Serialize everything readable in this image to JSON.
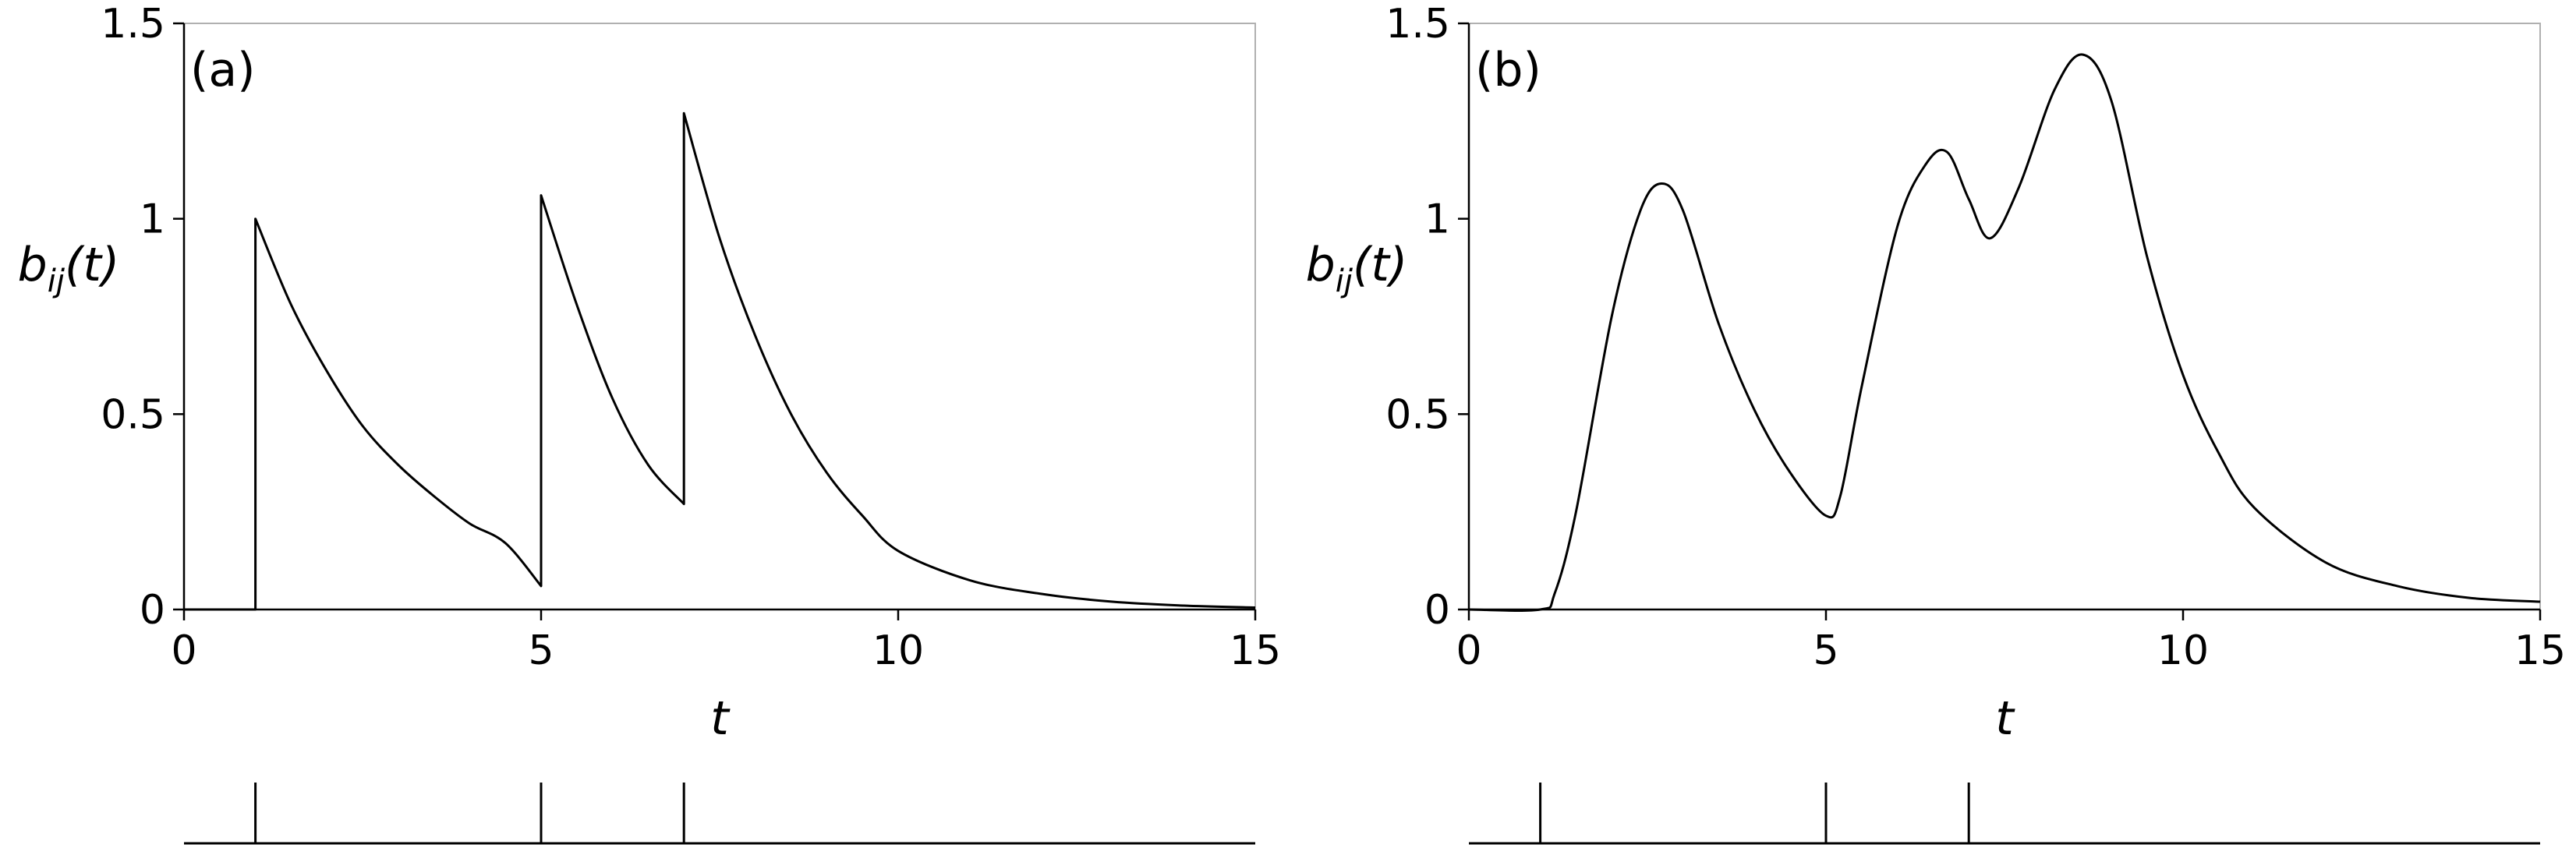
{
  "chart_data": [
    {
      "type": "line",
      "panel_label": "(a)",
      "xlabel": "t",
      "ylabel": {
        "base": "b",
        "sub": "ij",
        "arg": "(t)"
      },
      "xlim": [
        0,
        15
      ],
      "ylim": [
        0,
        1.5
      ],
      "x_ticks": [
        "0",
        "5",
        "10",
        "15"
      ],
      "x_tick_values": [
        0,
        5,
        10,
        15
      ],
      "y_ticks": [
        "0",
        "0.5",
        "1",
        "1.5"
      ],
      "y_tick_values": [
        0,
        0.5,
        1,
        1.5
      ],
      "grid": false,
      "spike_times": [
        1,
        5,
        7
      ],
      "series": [
        {
          "x": [
            0,
            1,
            1,
            1.5,
            2,
            2.5,
            3,
            3.5,
            4,
            4.5,
            5,
            5,
            5.5,
            6,
            6.5,
            7,
            7,
            7.5,
            8,
            8.5,
            9,
            9.5,
            10,
            11,
            12,
            13,
            14,
            15
          ],
          "values": [
            0,
            0,
            1.0,
            0.78,
            0.61,
            0.47,
            0.37,
            0.29,
            0.22,
            0.17,
            0.06,
            1.06,
            0.78,
            0.54,
            0.37,
            0.27,
            1.27,
            0.95,
            0.7,
            0.5,
            0.35,
            0.24,
            0.15,
            0.075,
            0.04,
            0.02,
            0.01,
            0.005
          ]
        }
      ]
    },
    {
      "type": "line",
      "panel_label": "(b)",
      "xlabel": "t",
      "ylabel": {
        "base": "b",
        "sub": "ij",
        "arg": "(t)"
      },
      "xlim": [
        0,
        15
      ],
      "ylim": [
        0,
        1.5
      ],
      "x_ticks": [
        "0",
        "5",
        "10",
        "15"
      ],
      "x_tick_values": [
        0,
        5,
        10,
        15
      ],
      "y_ticks": [
        "0",
        "0.5",
        "1",
        "1.5"
      ],
      "y_tick_values": [
        0,
        0.5,
        1,
        1.5
      ],
      "grid": false,
      "spike_times": [
        1,
        5,
        7
      ],
      "series": [
        {
          "x": [
            0,
            1,
            1.2,
            1.5,
            2,
            2.4,
            2.7,
            3,
            3.5,
            4,
            4.5,
            5,
            5.2,
            5.5,
            6,
            6.4,
            6.7,
            7,
            7.3,
            7.7,
            8.2,
            8.6,
            9,
            9.5,
            10,
            10.5,
            11,
            12,
            13,
            14,
            15
          ],
          "values": [
            0,
            0,
            0.04,
            0.25,
            0.75,
            1.02,
            1.09,
            1.02,
            0.73,
            0.51,
            0.35,
            0.24,
            0.29,
            0.57,
            0.98,
            1.14,
            1.17,
            1.05,
            0.95,
            1.08,
            1.33,
            1.42,
            1.3,
            0.9,
            0.6,
            0.4,
            0.26,
            0.12,
            0.06,
            0.03,
            0.02
          ]
        }
      ]
    }
  ]
}
